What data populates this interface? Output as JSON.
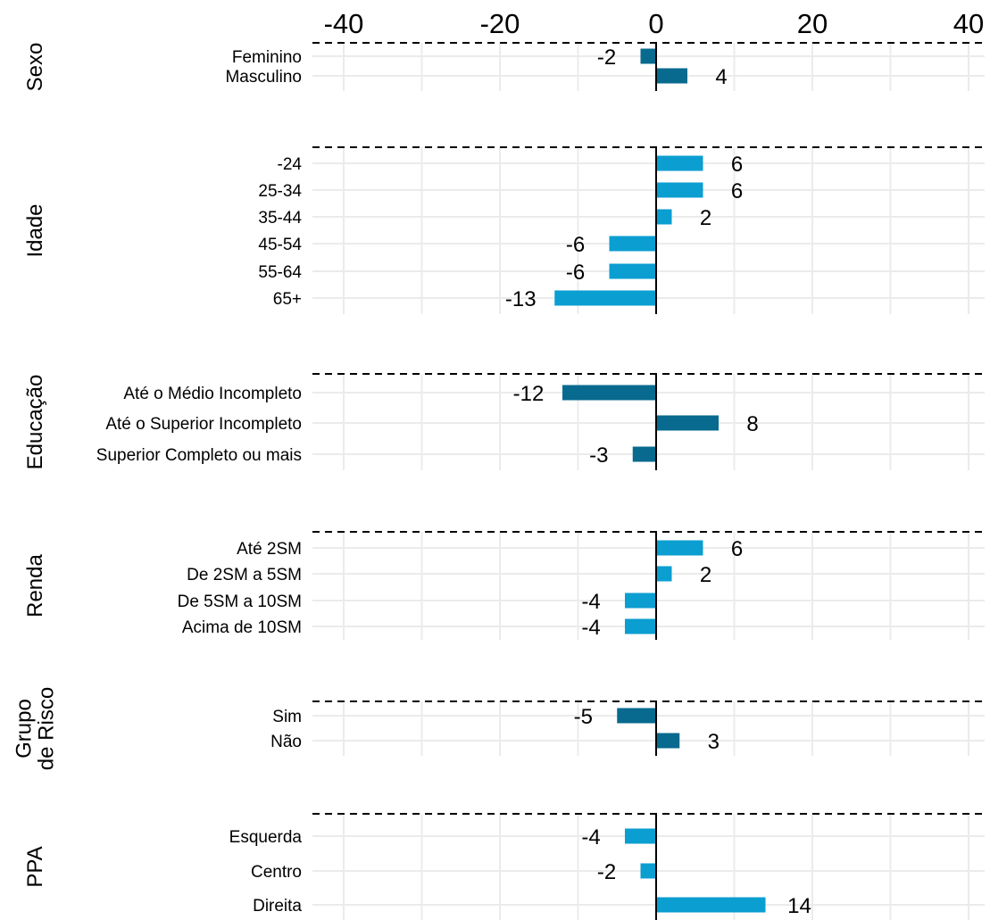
{
  "chart_data": {
    "type": "bar",
    "orientation": "horizontal",
    "xlim": [
      -40,
      40
    ],
    "x_ticks": [
      -40,
      -20,
      0,
      20,
      40
    ],
    "x_tick_position": "top",
    "grid": true,
    "colors": {
      "dark": "#076a8e",
      "light": "#0b9ed1"
    },
    "panels": [
      {
        "label": "Sexo",
        "color": "dark",
        "categories": [
          "Feminino",
          "Masculino"
        ],
        "values": [
          -2,
          4
        ]
      },
      {
        "label": "Idade",
        "color": "light",
        "categories": [
          "-24",
          "25-34",
          "35-44",
          "45-54",
          "55-64",
          "65+"
        ],
        "values": [
          6,
          6,
          2,
          -6,
          -6,
          -13
        ]
      },
      {
        "label": "Educação",
        "color": "dark",
        "categories": [
          "Até o Médio Incompleto",
          "Até o Superior Incompleto",
          "Superior Completo ou mais"
        ],
        "values": [
          -12,
          8,
          -3
        ]
      },
      {
        "label": "Renda",
        "color": "light",
        "categories": [
          "Até 2SM",
          "De 2SM a 5SM",
          "De 5SM a 10SM",
          "Acima de 10SM"
        ],
        "values": [
          6,
          2,
          -4,
          -4
        ]
      },
      {
        "label": "Grupo de Risco",
        "label_lines": [
          "Grupo",
          "de Risco"
        ],
        "color": "dark",
        "categories": [
          "Sim",
          "Não"
        ],
        "values": [
          -5,
          3
        ]
      },
      {
        "label": "PPA",
        "color": "light",
        "categories": [
          "Esquerda",
          "Centro",
          "Direita"
        ],
        "values": [
          -4,
          -2,
          14
        ]
      }
    ]
  }
}
